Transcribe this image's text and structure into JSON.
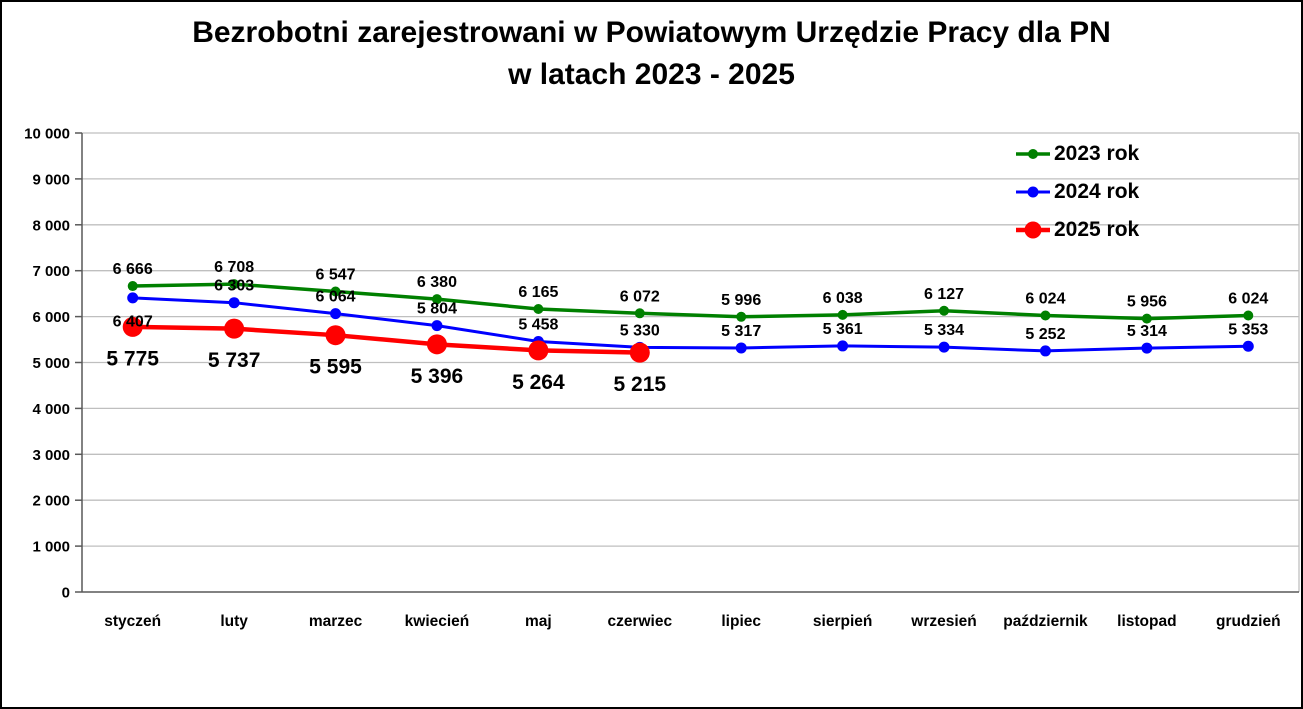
{
  "title": {
    "line1": "Bezrobotni zarejestrowani w Powiatowym Urzędzie Pracy dla PN",
    "line2": "w latach 2023 - 2025"
  },
  "chart_data": {
    "type": "line",
    "title": "Bezrobotni zarejestrowani w Powiatowym Urzędzie Pracy dla PN w latach 2023 - 2025",
    "categories": [
      "styczeń",
      "luty",
      "marzec",
      "kwiecień",
      "maj",
      "czerwiec",
      "lipiec",
      "sierpień",
      "wrzesień",
      "październik",
      "listopad",
      "grudzień"
    ],
    "series": [
      {
        "name": "2023 rok",
        "color": "#008000",
        "values": [
          6666,
          6708,
          6547,
          6380,
          6165,
          6072,
          5996,
          6038,
          6127,
          6024,
          5956,
          6024
        ],
        "label_position": "above"
      },
      {
        "name": "2024 rok",
        "color": "#0000FF",
        "values": [
          6407,
          6303,
          6064,
          5804,
          5458,
          5330,
          5317,
          5361,
          5334,
          5252,
          5314,
          5353
        ],
        "label_position": "above",
        "label_position_overrides": {
          "0": "below"
        }
      },
      {
        "name": "2025 rok",
        "color": "#FF0000",
        "values": [
          5775,
          5737,
          5595,
          5396,
          5264,
          5215
        ],
        "label_position": "below"
      }
    ],
    "xlabel": "",
    "ylabel": "",
    "ylim": [
      0,
      10000
    ],
    "ytick_step": 1000,
    "ytick_labels": [
      "0",
      "1 000",
      "2 000",
      "3 000",
      "4 000",
      "5 000",
      "6 000",
      "7 000",
      "8 000",
      "9 000",
      "10 000"
    ],
    "grid": "horizontal",
    "legend_position": "top-right",
    "number_format": "space-thousands",
    "gridline_color": "#BFBFBF",
    "axis_color": "#595959",
    "text_color": "#000000"
  }
}
